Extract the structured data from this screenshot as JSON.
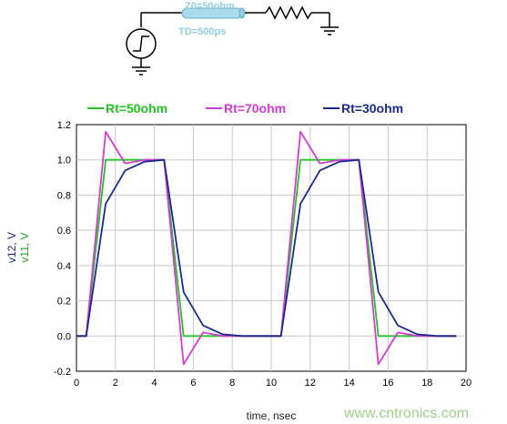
{
  "schematic": {
    "tline_z0_label": "Z0=50ohm",
    "tline_td_label": "TD=500ps"
  },
  "watermark": "www.cntronics.com",
  "colors": {
    "Rt=50ohm": "#22c422",
    "Rt=70ohm": "#d63ad6",
    "Rt=30ohm": "#1a2a8c"
  },
  "chart_data": {
    "type": "line",
    "xlabel": "time, nsec",
    "ylabel": [
      "v12, V",
      "v11, V"
    ],
    "xlim": [
      0,
      20
    ],
    "ylim": [
      -0.2,
      1.2
    ],
    "xticks": [
      0,
      2,
      4,
      6,
      8,
      10,
      12,
      14,
      16,
      18,
      20
    ],
    "yticks": [
      -0.2,
      0.0,
      0.2,
      0.4,
      0.6,
      0.8,
      1.0,
      1.2
    ],
    "grid": true,
    "legend_position": "top",
    "series": [
      {
        "name": "Rt=50ohm",
        "x": [
          0,
          0.5,
          1.5,
          2.5,
          3.5,
          4.5,
          5.5,
          6.5,
          7.5,
          8.5,
          9.5,
          10.5,
          11.5,
          12.5,
          13.5,
          14.5,
          15.5,
          16.5,
          17.5,
          18.5,
          19.5
        ],
        "y": [
          0,
          0,
          1.0,
          1.0,
          1.0,
          1.0,
          0,
          0,
          0,
          0,
          0,
          0,
          1.0,
          1.0,
          1.0,
          1.0,
          0,
          0,
          0,
          0,
          0
        ]
      },
      {
        "name": "Rt=70ohm",
        "x": [
          0,
          0.5,
          1.5,
          2.5,
          3.5,
          4.5,
          5.5,
          6.5,
          7.5,
          8.5,
          9.5,
          10.5,
          11.5,
          12.5,
          13.5,
          14.5,
          15.5,
          16.5,
          17.5,
          18.5,
          19.5
        ],
        "y": [
          0,
          0,
          1.16,
          0.98,
          1.0,
          1.0,
          -0.16,
          0.02,
          0,
          0,
          0,
          0,
          1.16,
          0.98,
          1.0,
          1.0,
          -0.16,
          0.02,
          0,
          0,
          0
        ]
      },
      {
        "name": "Rt=30ohm",
        "x": [
          0,
          0.5,
          1.5,
          2.5,
          3.5,
          4.5,
          5.5,
          6.5,
          7.5,
          8.5,
          9.5,
          10.5,
          11.5,
          12.5,
          13.5,
          14.5,
          15.5,
          16.5,
          17.5,
          18.5,
          19.5
        ],
        "y": [
          0,
          0,
          0.75,
          0.94,
          0.99,
          1.0,
          0.25,
          0.06,
          0.01,
          0,
          0,
          0,
          0.75,
          0.94,
          0.99,
          1.0,
          0.25,
          0.06,
          0.01,
          0,
          0
        ]
      }
    ]
  }
}
